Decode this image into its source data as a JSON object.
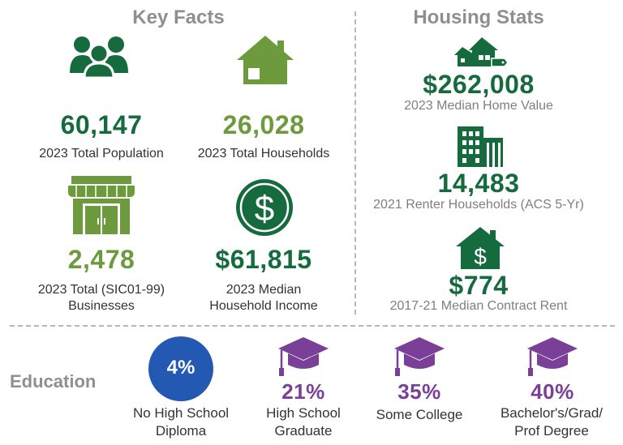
{
  "key_facts": {
    "title": "Key Facts",
    "population": {
      "value": "60,147",
      "label": "2023 Total Population"
    },
    "households": {
      "value": "26,028",
      "label": "2023 Total Households"
    },
    "businesses": {
      "value": "2,478",
      "label1": "2023 Total (SIC01-99)",
      "label2": "Businesses"
    },
    "income": {
      "value": "$61,815",
      "label1": "2023 Median",
      "label2": "Household Income"
    }
  },
  "housing_stats": {
    "title": "Housing Stats",
    "home_value": {
      "value": "$262,008",
      "label": "2023 Median Home Value"
    },
    "renters": {
      "value": "14,483",
      "label": "2021 Renter Households (ACS 5-Yr)"
    },
    "rent": {
      "value": "$774",
      "label": "2017-21 Median Contract Rent"
    }
  },
  "education": {
    "title": "Education",
    "no_diploma": {
      "value": "4%",
      "label1": "No High School",
      "label2": "Diploma"
    },
    "high_school": {
      "value": "21%",
      "label1": "High School",
      "label2": "Graduate"
    },
    "some_college": {
      "value": "35%",
      "label1": "Some College"
    },
    "bachelors": {
      "value": "40%",
      "label1": "Bachelor's/Grad/",
      "label2": "Prof Degree"
    }
  },
  "colors": {
    "dark_green": "#166b3e",
    "light_green": "#6e9a3e",
    "purple": "#7a3f96",
    "blue": "#2459b3",
    "gray": "#8f8f8f"
  },
  "icons": [
    "people-icon",
    "house-icon",
    "store-icon",
    "dollar-circle-icon",
    "houses-tag-icon",
    "building-icon",
    "house-dollar-icon",
    "graduation-cap-icon"
  ]
}
